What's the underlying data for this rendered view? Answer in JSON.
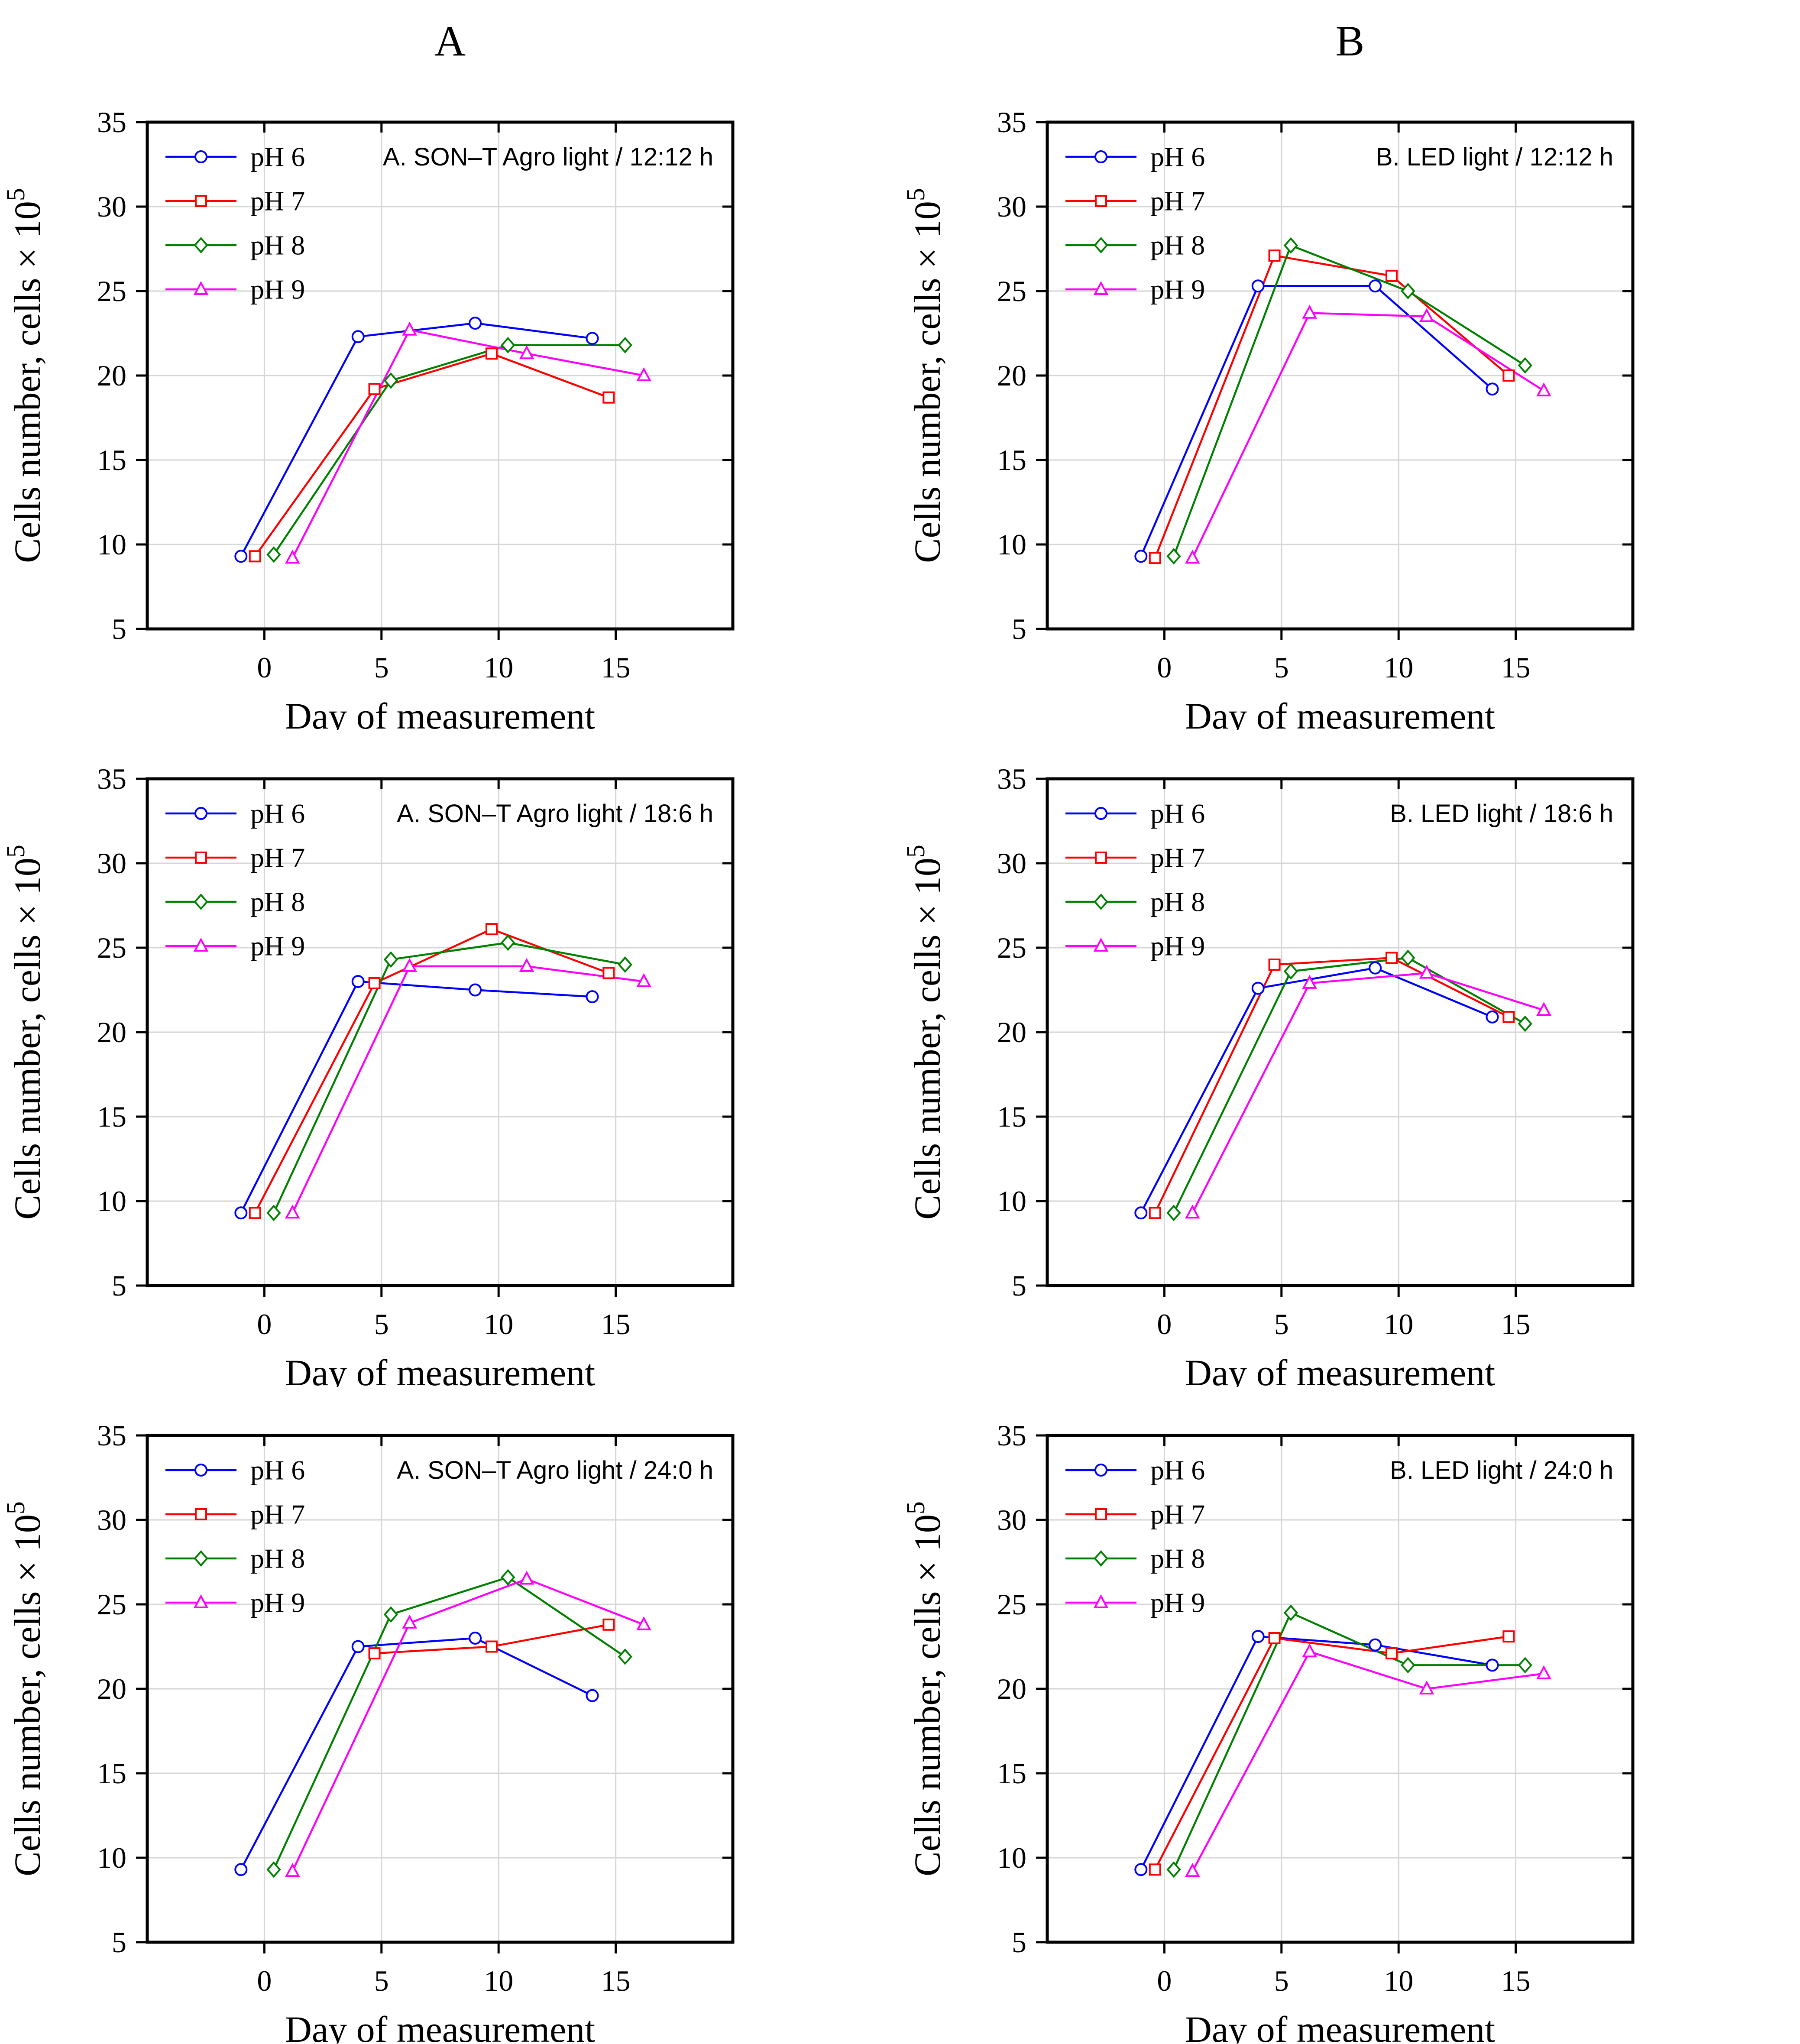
{
  "page": {
    "background": "#ffffff"
  },
  "headers": {
    "left": "A",
    "right": "B"
  },
  "axes_common": {
    "xlabel": "Day of measurement",
    "ylabel_base": "Cells number, cells × 10",
    "ylabel_sup": "5",
    "xlim": [
      -5,
      20
    ],
    "ylim": [
      5,
      35
    ],
    "xticks": [
      0,
      5,
      10,
      15
    ],
    "yticks": [
      5,
      10,
      15,
      20,
      25,
      30,
      35
    ],
    "grid_x": [
      0,
      5,
      10,
      15
    ],
    "grid_y": [
      10,
      15,
      20,
      25,
      30
    ],
    "grid_color": "#d6d6d6",
    "axis_color": "#000000",
    "series_colors": {
      "pH 6": "#0000ff",
      "pH 7": "#ff0000",
      "pH 8": "#008000",
      "pH 9": "#ff00ff"
    }
  },
  "chart_data": [
    {
      "type": "line",
      "id": "son-t-agro-12-12",
      "title": "A. SON–T Agro light / 12:12 h",
      "xlabel": "Day of measurement",
      "series": [
        {
          "name": "pH 6",
          "color": "#0000ff",
          "marker": "circle",
          "x": [
            -1,
            4,
            9,
            14
          ],
          "y": [
            9.3,
            22.3,
            23.1,
            22.2
          ]
        },
        {
          "name": "pH 7",
          "color": "#ff0000",
          "marker": "square",
          "x": [
            -0.4,
            4.7,
            9.7,
            14.7
          ],
          "y": [
            9.3,
            19.2,
            21.3,
            18.7
          ]
        },
        {
          "name": "pH 8",
          "color": "#008000",
          "marker": "diamond",
          "x": [
            0.4,
            5.4,
            10.4,
            15.4
          ],
          "y": [
            9.4,
            19.7,
            21.8,
            21.8
          ]
        },
        {
          "name": "pH 9",
          "color": "#ff00ff",
          "marker": "triangle",
          "x": [
            1.2,
            6.2,
            11.2,
            16.2
          ],
          "y": [
            9.2,
            22.7,
            21.3,
            20.0
          ]
        }
      ]
    },
    {
      "type": "line",
      "id": "led-12-12",
      "title": "B. LED light / 12:12 h",
      "xlabel": "Day of measurement",
      "series": [
        {
          "name": "pH 6",
          "color": "#0000ff",
          "marker": "circle",
          "x": [
            -1,
            4,
            9,
            14
          ],
          "y": [
            9.3,
            25.3,
            25.3,
            19.2
          ]
        },
        {
          "name": "pH 7",
          "color": "#ff0000",
          "marker": "square",
          "x": [
            -0.4,
            4.7,
            9.7,
            14.7
          ],
          "y": [
            9.2,
            27.1,
            25.9,
            20.0
          ]
        },
        {
          "name": "pH 8",
          "color": "#008000",
          "marker": "diamond",
          "x": [
            0.4,
            5.4,
            10.4,
            15.4
          ],
          "y": [
            9.3,
            27.7,
            25.0,
            20.6
          ]
        },
        {
          "name": "pH 9",
          "color": "#ff00ff",
          "marker": "triangle",
          "x": [
            1.2,
            6.2,
            11.2,
            16.2
          ],
          "y": [
            9.2,
            23.7,
            23.5,
            19.1
          ]
        }
      ]
    },
    {
      "type": "line",
      "id": "son-t-agro-18-6",
      "title": "A. SON–T Agro light / 18:6 h",
      "xlabel": "Day of measurement",
      "series": [
        {
          "name": "pH 6",
          "color": "#0000ff",
          "marker": "circle",
          "x": [
            -1,
            4,
            9,
            14
          ],
          "y": [
            9.3,
            23.0,
            22.5,
            22.1
          ]
        },
        {
          "name": "pH 7",
          "color": "#ff0000",
          "marker": "square",
          "x": [
            -0.4,
            4.7,
            9.7,
            14.7
          ],
          "y": [
            9.3,
            22.9,
            26.1,
            23.5
          ]
        },
        {
          "name": "pH 8",
          "color": "#008000",
          "marker": "diamond",
          "x": [
            0.4,
            5.4,
            10.4,
            15.4
          ],
          "y": [
            9.3,
            24.3,
            25.3,
            24.0
          ]
        },
        {
          "name": "pH 9",
          "color": "#ff00ff",
          "marker": "triangle",
          "x": [
            1.2,
            6.2,
            11.2,
            16.2
          ],
          "y": [
            9.3,
            23.9,
            23.9,
            23.0
          ]
        }
      ]
    },
    {
      "type": "line",
      "id": "led-18-6",
      "title": "B. LED light / 18:6 h",
      "xlabel": "Day of measurement",
      "series": [
        {
          "name": "pH 6",
          "color": "#0000ff",
          "marker": "circle",
          "x": [
            -1,
            4,
            9,
            14
          ],
          "y": [
            9.3,
            22.6,
            23.8,
            20.9
          ]
        },
        {
          "name": "pH 7",
          "color": "#ff0000",
          "marker": "square",
          "x": [
            -0.4,
            4.7,
            9.7,
            14.7
          ],
          "y": [
            9.3,
            24.0,
            24.4,
            20.9
          ]
        },
        {
          "name": "pH 8",
          "color": "#008000",
          "marker": "diamond",
          "x": [
            0.4,
            5.4,
            10.4,
            15.4
          ],
          "y": [
            9.3,
            23.6,
            24.4,
            20.5
          ]
        },
        {
          "name": "pH 9",
          "color": "#ff00ff",
          "marker": "triangle",
          "x": [
            1.2,
            6.2,
            11.2,
            16.2
          ],
          "y": [
            9.3,
            22.9,
            23.5,
            21.3
          ]
        }
      ]
    },
    {
      "type": "line",
      "id": "son-t-agro-24-0",
      "title": "A. SON–T Agro light / 24:0 h",
      "xlabel": "Day of measurement",
      "series": [
        {
          "name": "pH 6",
          "color": "#0000ff",
          "marker": "circle",
          "x": [
            -1,
            4,
            9,
            14
          ],
          "y": [
            9.3,
            22.5,
            23.0,
            19.6
          ]
        },
        {
          "name": "pH 7",
          "color": "#ff0000",
          "marker": "square",
          "x": [
            4.7,
            9.7,
            14.7
          ],
          "y": [
            22.1,
            22.5,
            23.8
          ]
        },
        {
          "name": "pH 8",
          "color": "#008000",
          "marker": "diamond",
          "x": [
            0.4,
            5.4,
            10.4,
            15.4
          ],
          "y": [
            9.3,
            24.4,
            26.6,
            21.9
          ]
        },
        {
          "name": "pH 9",
          "color": "#ff00ff",
          "marker": "triangle",
          "x": [
            1.2,
            6.2,
            11.2,
            16.2
          ],
          "y": [
            9.2,
            23.9,
            26.5,
            23.8
          ]
        }
      ]
    },
    {
      "type": "line",
      "id": "led-24-0",
      "title": "B. LED light / 24:0 h",
      "xlabel": "Day of measurement",
      "series": [
        {
          "name": "pH 6",
          "color": "#0000ff",
          "marker": "circle",
          "x": [
            -1,
            4,
            9,
            14
          ],
          "y": [
            9.3,
            23.1,
            22.6,
            21.4
          ]
        },
        {
          "name": "pH 7",
          "color": "#ff0000",
          "marker": "square",
          "x": [
            -0.4,
            4.7,
            9.7,
            14.7
          ],
          "y": [
            9.3,
            23.0,
            22.1,
            23.1
          ]
        },
        {
          "name": "pH 8",
          "color": "#008000",
          "marker": "diamond",
          "x": [
            0.4,
            5.4,
            10.4,
            15.4
          ],
          "y": [
            9.3,
            24.5,
            21.4,
            21.4
          ]
        },
        {
          "name": "pH 9",
          "color": "#ff00ff",
          "marker": "triangle",
          "x": [
            1.2,
            6.2,
            11.2,
            16.2
          ],
          "y": [
            9.2,
            22.2,
            20.0,
            20.9
          ]
        }
      ]
    }
  ]
}
